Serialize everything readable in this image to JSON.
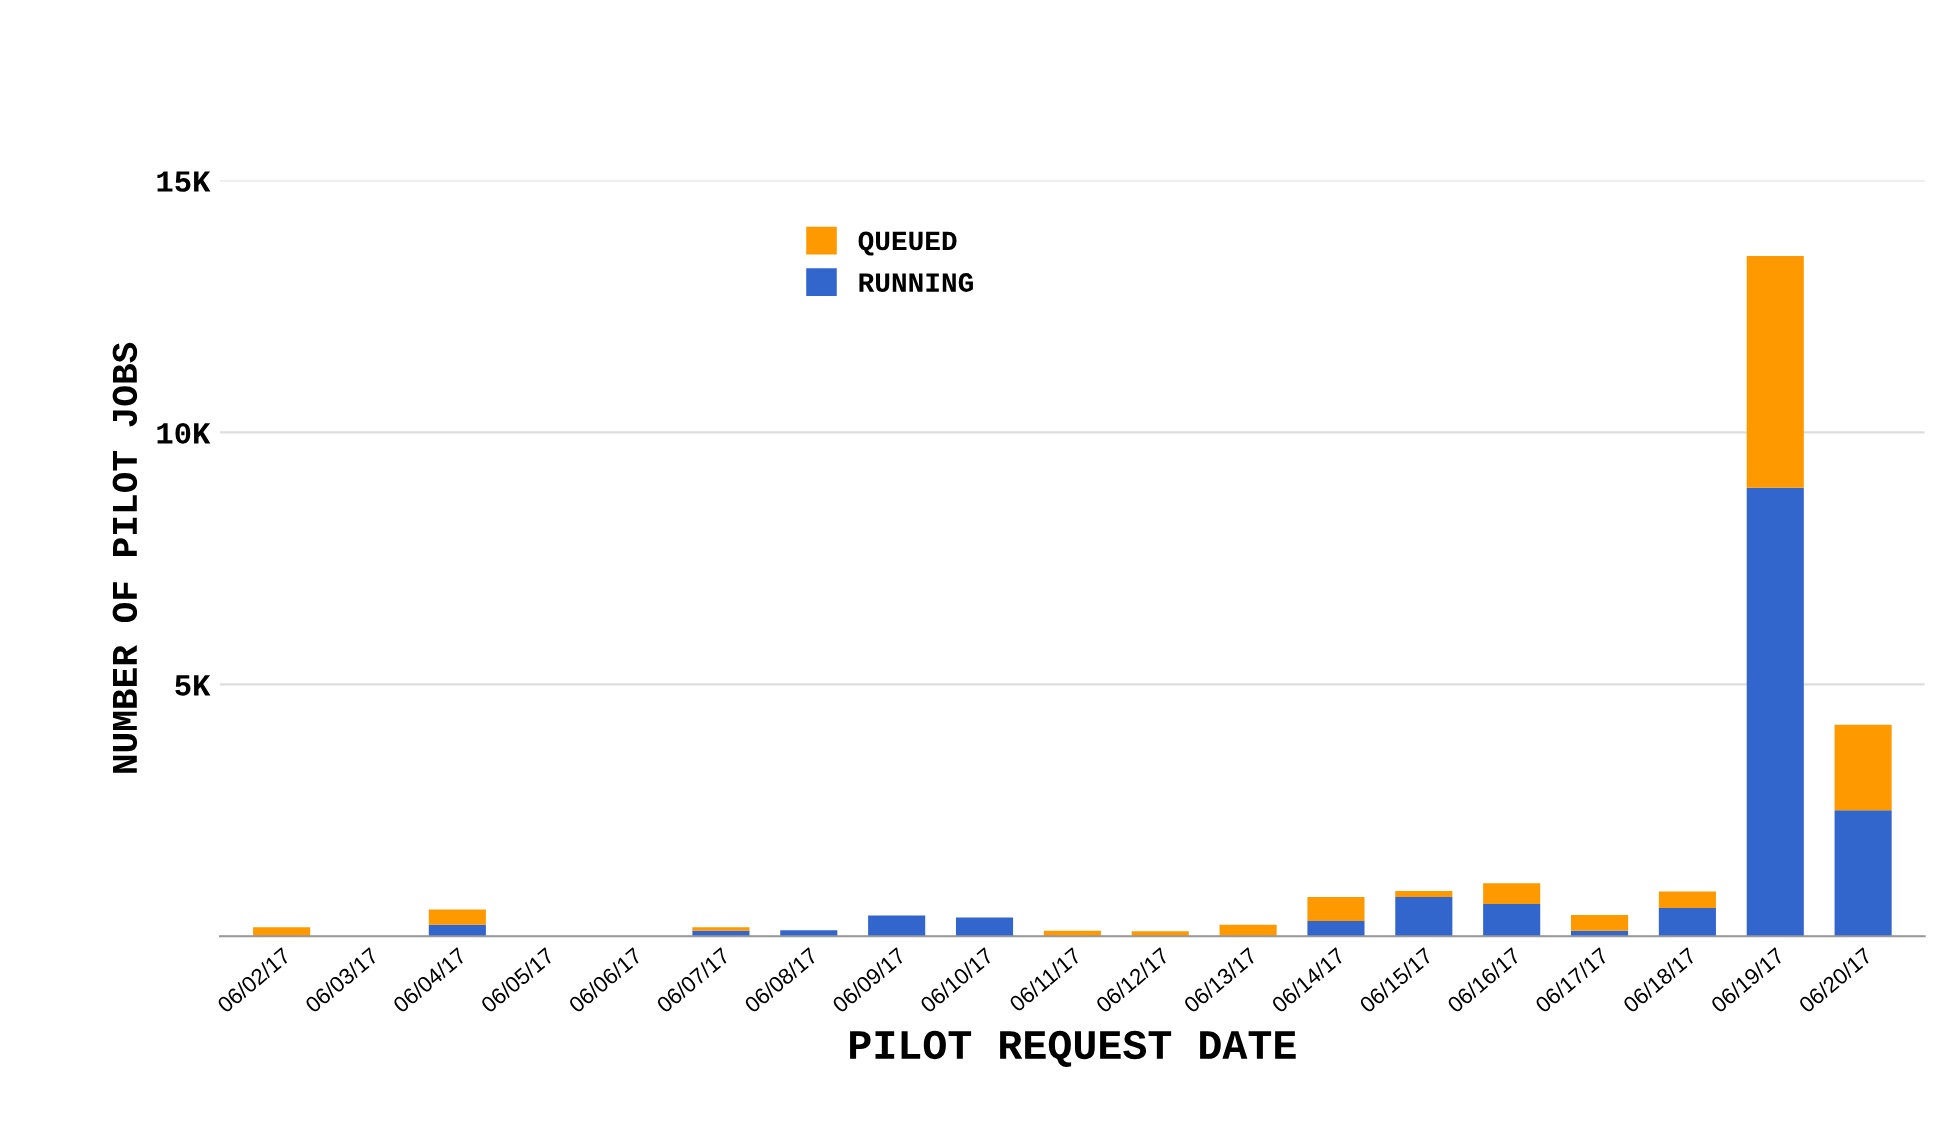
{
  "chart_data": {
    "type": "bar",
    "stacked": true,
    "xlabel": "PILOT REQUEST DATE",
    "ylabel": "NUMBER OF PILOT JOBS",
    "categories": [
      "06/02/17",
      "06/03/17",
      "06/04/17",
      "06/05/17",
      "06/06/17",
      "06/07/17",
      "06/08/17",
      "06/09/17",
      "06/10/17",
      "06/11/17",
      "06/12/17",
      "06/13/17",
      "06/14/17",
      "06/15/17",
      "06/16/17",
      "06/17/17",
      "06/18/17",
      "06/19/17",
      "06/20/17"
    ],
    "series": [
      {
        "name": "RUNNING",
        "color": "#3366cc",
        "values": [
          0,
          null,
          230,
          0,
          null,
          110,
          120,
          410,
          370,
          0,
          0,
          0,
          300,
          780,
          640,
          110,
          560,
          8900,
          2500
        ]
      },
      {
        "name": "QUEUED",
        "color": "#ff9900",
        "values": [
          180,
          0,
          300,
          null,
          0,
          70,
          0,
          0,
          0,
          110,
          100,
          230,
          480,
          120,
          410,
          310,
          330,
          4600,
          1700
        ]
      }
    ],
    "ylim": [
      0,
      15000
    ],
    "yticks": [
      {
        "value": 0,
        "label": null
      },
      {
        "value": 5000,
        "label": "5K"
      },
      {
        "value": 10000,
        "label": "10K"
      },
      {
        "value": 15000,
        "label": "15K"
      }
    ],
    "grid": "y",
    "legend": "top left"
  }
}
